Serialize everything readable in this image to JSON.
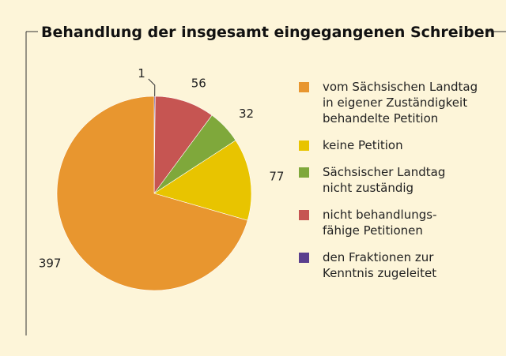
{
  "chart_data": {
    "type": "pie",
    "title": "Behandlung der insgesamt eingegangenen Schreiben",
    "categories": [
      "vom Sächsischen Landtag\nin eigener Zuständigkeit\nbehandelte Petition",
      "keine Petition",
      "Sächsischer Landtag\nnicht zuständig",
      "nicht behandlungs-\nfähige Petitionen",
      "den Fraktionen zur\nKenntnis zugeleitet"
    ],
    "values": [
      397,
      77,
      32,
      56,
      1
    ],
    "colors": [
      "#e8962f",
      "#e8c400",
      "#7fa83b",
      "#c65552",
      "#5a3f8e"
    ]
  }
}
